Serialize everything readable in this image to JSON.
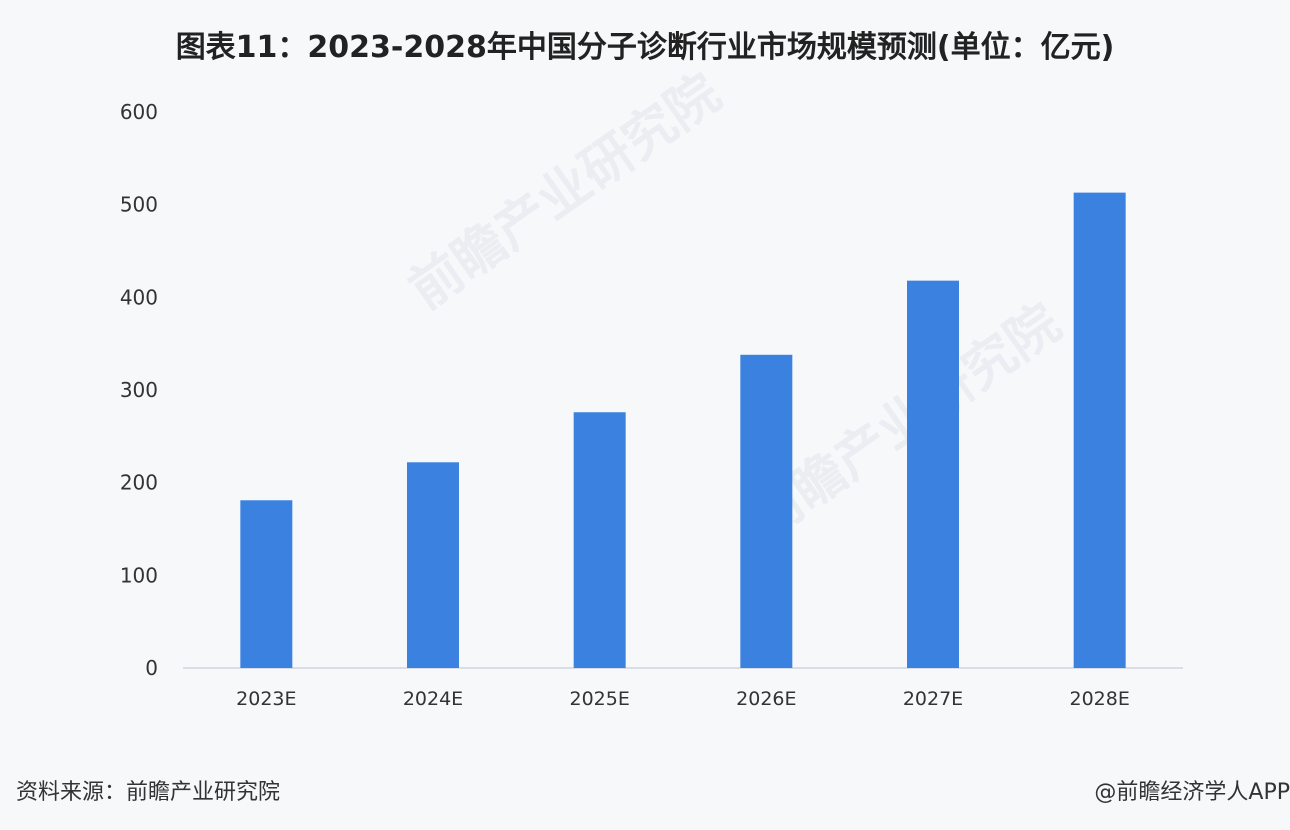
{
  "chart_data": {
    "type": "bar",
    "title": "图表11：2023-2028年中国分子诊断行业市场规模预测(单位：亿元)",
    "xlabel": "",
    "ylabel": "",
    "categories": [
      "2023E",
      "2024E",
      "2025E",
      "2026E",
      "2027E",
      "2028E"
    ],
    "values": [
      181,
      222,
      276,
      338,
      418,
      513
    ],
    "ylim": [
      0,
      600
    ],
    "yticks": [
      0,
      100,
      200,
      300,
      400,
      500,
      600
    ],
    "grid": false,
    "bar_color": "#3b82e0"
  },
  "footer": {
    "source": "资料来源：前瞻产业研究院",
    "credit": "@前瞻经济学人APP"
  },
  "watermark": "前瞻产业研究院"
}
